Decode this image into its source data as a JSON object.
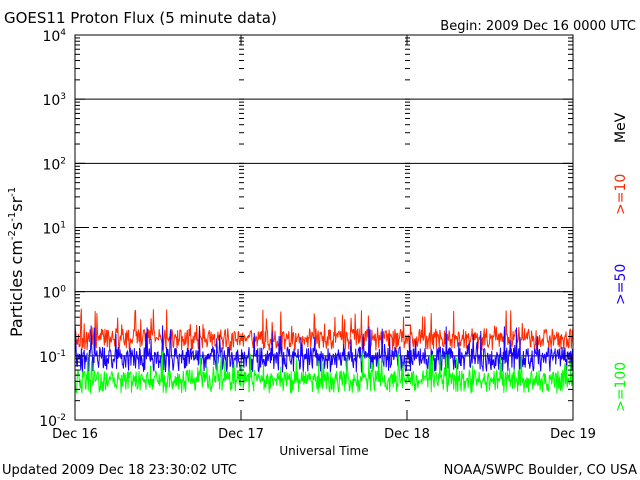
{
  "chart_data": {
    "type": "line",
    "title": "GOES11 Proton Flux (5 minute data)",
    "begin_label": "Begin: 2009 Dec 16 0000 UTC",
    "xlabel": "Universal Time",
    "ylabel_main": "Particles cm",
    "ylabel_sup1": "-2",
    "ylabel_mid1": "s",
    "ylabel_sup2": "-1",
    "ylabel_mid2": "sr",
    "ylabel_sup3": "-1",
    "yscale": "log",
    "ylim": [
      0.01,
      10000
    ],
    "y_ticks": [
      {
        "value": 10000,
        "base": "10",
        "exp": "4"
      },
      {
        "value": 1000,
        "base": "10",
        "exp": "3"
      },
      {
        "value": 100,
        "base": "10",
        "exp": "2"
      },
      {
        "value": 10,
        "base": "10",
        "exp": "1"
      },
      {
        "value": 1,
        "base": "10",
        "exp": "0"
      },
      {
        "value": 0.1,
        "base": "10",
        "exp": "-1"
      },
      {
        "value": 0.01,
        "base": "10",
        "exp": "-2"
      }
    ],
    "x_ticks": [
      "Dec 16",
      "Dec 17",
      "Dec 18",
      "Dec 19"
    ],
    "xlim_days": [
      0,
      3
    ],
    "threshold_lines": [
      {
        "value": 1000,
        "style": "solid"
      },
      {
        "value": 100,
        "style": "solid"
      },
      {
        "value": 10,
        "style": "dashed"
      },
      {
        "value": 1,
        "style": "solid"
      },
      {
        "value": 0.1,
        "style": "solid"
      }
    ],
    "energy_unit": "MeV",
    "series": [
      {
        "name": ">=10",
        "color": "#ff2a00",
        "baseline": 0.2,
        "min": 0.12,
        "max": 0.55
      },
      {
        "name": ">=50",
        "color": "#1a00ff",
        "baseline": 0.1,
        "min": 0.055,
        "max": 0.3
      },
      {
        "name": ">=100",
        "color": "#00ff00",
        "baseline": 0.045,
        "min": 0.026,
        "max": 0.12
      }
    ],
    "interval_minutes": 5
  },
  "footer": {
    "updated": "Updated 2009 Dec 18 23:30:02 UTC",
    "source": "NOAA/SWPC Boulder, CO USA"
  }
}
